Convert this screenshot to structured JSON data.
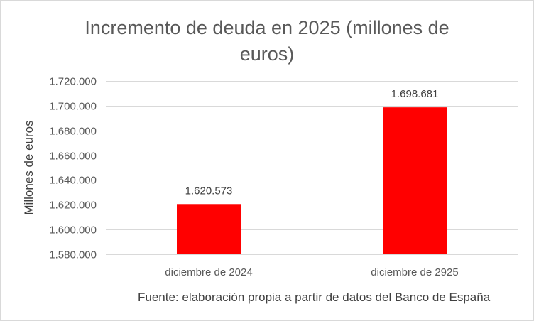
{
  "chart_data": {
    "type": "bar",
    "title": "Incremento de deuda en 2025 (millones de euros)",
    "xlabel": "",
    "ylabel": "Millones de euros",
    "categories": [
      "diciembre de 2024",
      "diciembre de 2925"
    ],
    "values": [
      1620573,
      1698681
    ],
    "data_labels": [
      "1.620.573",
      "1.698.681"
    ],
    "ylim": [
      1580000,
      1720000
    ],
    "yticks": [
      1580000,
      1600000,
      1620000,
      1640000,
      1660000,
      1680000,
      1700000,
      1720000
    ],
    "ytick_labels": [
      "1.580.000",
      "1.600.000",
      "1.620.000",
      "1.640.000",
      "1.660.000",
      "1.680.000",
      "1.700.000",
      "1.720.000"
    ],
    "grid": true,
    "legend": "none",
    "bar_color": "#ff0000",
    "gridline_color": "#d9d9d9"
  },
  "note": "Fuente: elaboración propia a partir de datos del Banco de España"
}
